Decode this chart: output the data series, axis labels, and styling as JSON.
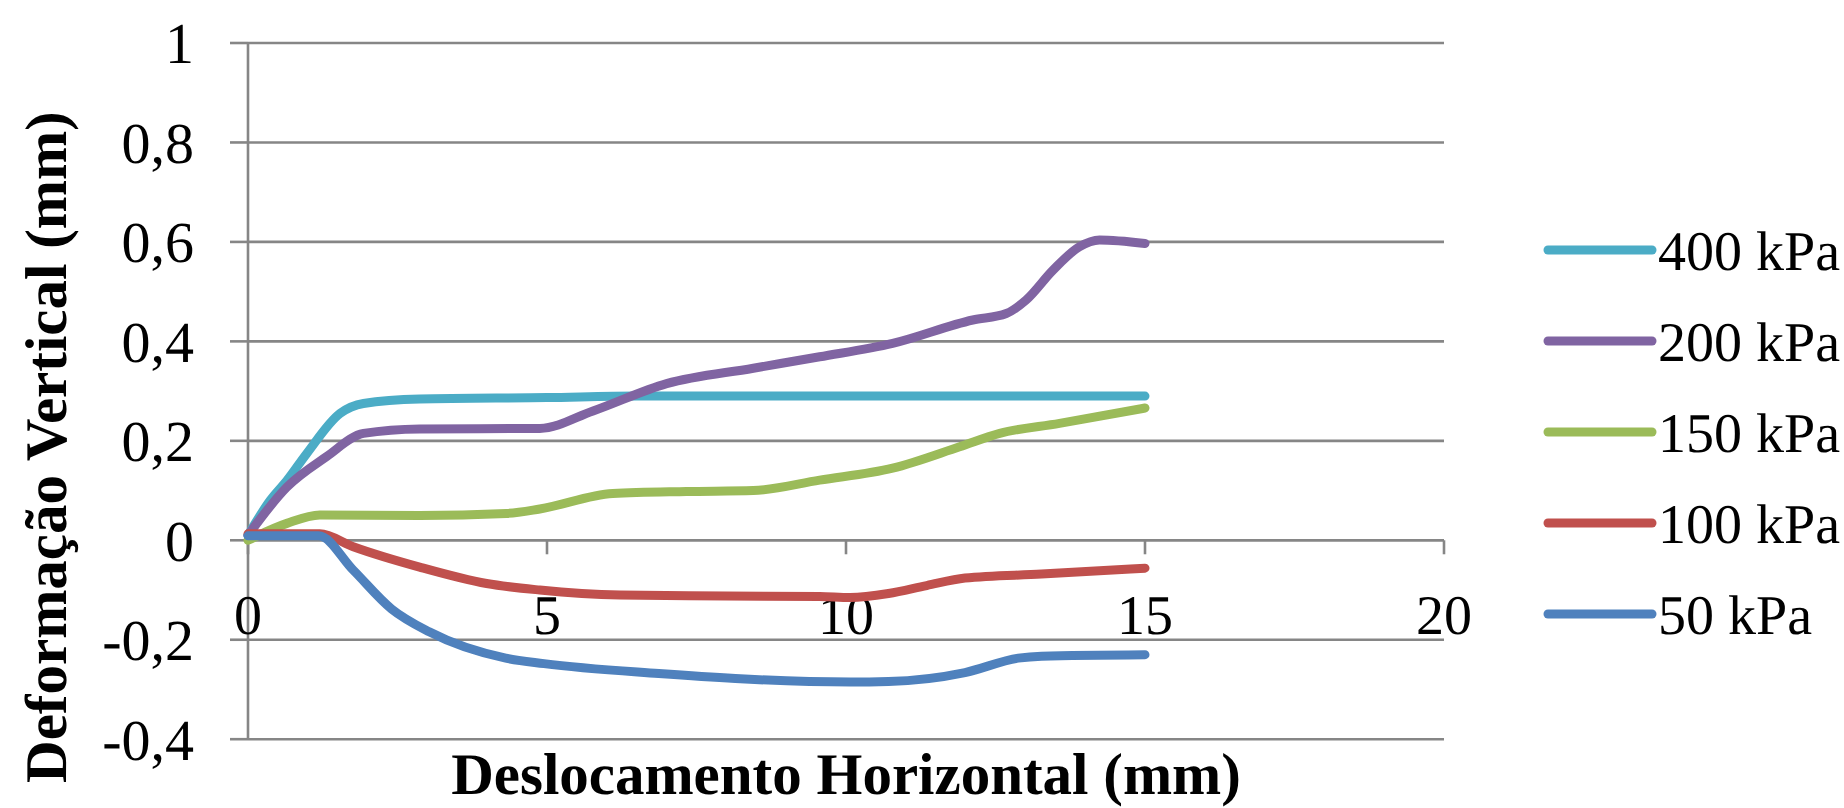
{
  "chart_data": {
    "type": "line",
    "xlabel": "Deslocamento Horizontal (mm)",
    "ylabel": "Deformação Vertical (mm)",
    "xlim": [
      0,
      20
    ],
    "xticks": [
      0,
      5,
      10,
      15,
      20
    ],
    "ylim": [
      -0.4,
      1
    ],
    "yticks": [
      {
        "value": -0.4,
        "label": "-0,4"
      },
      {
        "value": -0.2,
        "label": "-0,2"
      },
      0,
      {
        "value": 0.2,
        "label": "0,2"
      },
      {
        "value": 0.4,
        "label": "0,4"
      },
      {
        "value": 0.6,
        "label": "0,6"
      },
      {
        "value": 0.8,
        "label": "0,8"
      },
      1
    ],
    "grid": "y",
    "legend": "right",
    "series": [
      {
        "name": "400 kPa",
        "color": "#4bacc6",
        "x": [
          0,
          0.37,
          0.65,
          0.98,
          1.54,
          1.93,
          2.87,
          5,
          6.5,
          10,
          15
        ],
        "values": [
          0.01,
          0.08,
          0.12,
          0.174,
          0.255,
          0.275,
          0.284,
          0.287,
          0.29,
          0.29,
          0.29
        ]
      },
      {
        "name": "200 kPa",
        "color": "#8064a2",
        "x": [
          0,
          0.65,
          1.31,
          1.93,
          2.87,
          4.88,
          5.77,
          7.0,
          8.45,
          9.56,
          10.78,
          12.12,
          12.68,
          13.01,
          13.46,
          13.9,
          14.24,
          15
        ],
        "values": [
          0.01,
          0.107,
          0.168,
          0.215,
          0.224,
          0.225,
          0.26,
          0.315,
          0.346,
          0.369,
          0.396,
          0.443,
          0.456,
          0.483,
          0.543,
          0.59,
          0.604,
          0.597
        ]
      },
      {
        "name": "150 kPa",
        "color": "#9bbb59",
        "x": [
          0,
          0.65,
          1.2,
          2.87,
          4.32,
          4.88,
          6.1,
          7.33,
          8.45,
          9.56,
          10.78,
          11.9,
          12.57,
          13.57,
          15
        ],
        "values": [
          0,
          0.034,
          0.051,
          0.05,
          0.054,
          0.063,
          0.094,
          0.098,
          0.1,
          0.121,
          0.145,
          0.188,
          0.215,
          0.235,
          0.266
        ]
      },
      {
        "name": "100 kPa",
        "color": "#c0504d",
        "x": [
          0,
          1.2,
          1.76,
          2.87,
          3.99,
          4.88,
          6.22,
          8,
          9.56,
          10.07,
          10.71,
          11.35,
          11.99,
          13.27,
          15
        ],
        "values": [
          0.013,
          0.013,
          -0.013,
          -0.054,
          -0.087,
          -0.1,
          -0.11,
          -0.112,
          -0.113,
          -0.115,
          -0.107,
          -0.091,
          -0.076,
          -0.068,
          -0.056
        ]
      },
      {
        "name": "50 kPa",
        "color": "#4f81bd",
        "x": [
          0,
          1.18,
          1.76,
          2.4,
          3.03,
          4.31,
          4.95,
          6.87,
          8.15,
          10.07,
          10.71,
          11.99,
          12.88,
          13.27,
          15
        ],
        "values": [
          0.009,
          0.009,
          -0.06,
          -0.138,
          -0.184,
          -0.237,
          -0.248,
          -0.268,
          -0.278,
          -0.285,
          -0.284,
          -0.266,
          -0.237,
          -0.233,
          -0.23
        ]
      }
    ]
  }
}
